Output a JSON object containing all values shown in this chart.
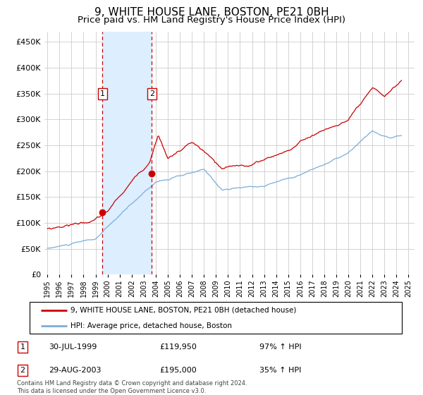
{
  "title": "9, WHITE HOUSE LANE, BOSTON, PE21 0BH",
  "subtitle": "Price paid vs. HM Land Registry's House Price Index (HPI)",
  "title_fontsize": 11,
  "subtitle_fontsize": 9.5,
  "ylabel_ticks": [
    "£0",
    "£50K",
    "£100K",
    "£150K",
    "£200K",
    "£250K",
    "£300K",
    "£350K",
    "£400K",
    "£450K"
  ],
  "ytick_values": [
    0,
    50000,
    100000,
    150000,
    200000,
    250000,
    300000,
    350000,
    400000,
    450000
  ],
  "ylim": [
    0,
    470000
  ],
  "xlim_start": 1994.75,
  "xlim_end": 2025.5,
  "sale1_x": 1999.58,
  "sale1_y": 119950,
  "sale2_x": 2003.67,
  "sale2_y": 195000,
  "property_line_color": "#cc0000",
  "hpi_line_color": "#7aaddb",
  "shade_color": "#ddeeff",
  "grid_color": "#cccccc",
  "legend_property": "9, WHITE HOUSE LANE, BOSTON, PE21 0BH (detached house)",
  "legend_hpi": "HPI: Average price, detached house, Boston",
  "sale1_date": "30-JUL-1999",
  "sale1_price": "£119,950",
  "sale1_hpi": "97% ↑ HPI",
  "sale2_date": "29-AUG-2003",
  "sale2_price": "£195,000",
  "sale2_hpi": "35% ↑ HPI",
  "footer": "Contains HM Land Registry data © Crown copyright and database right 2024.\nThis data is licensed under the Open Government Licence v3.0."
}
